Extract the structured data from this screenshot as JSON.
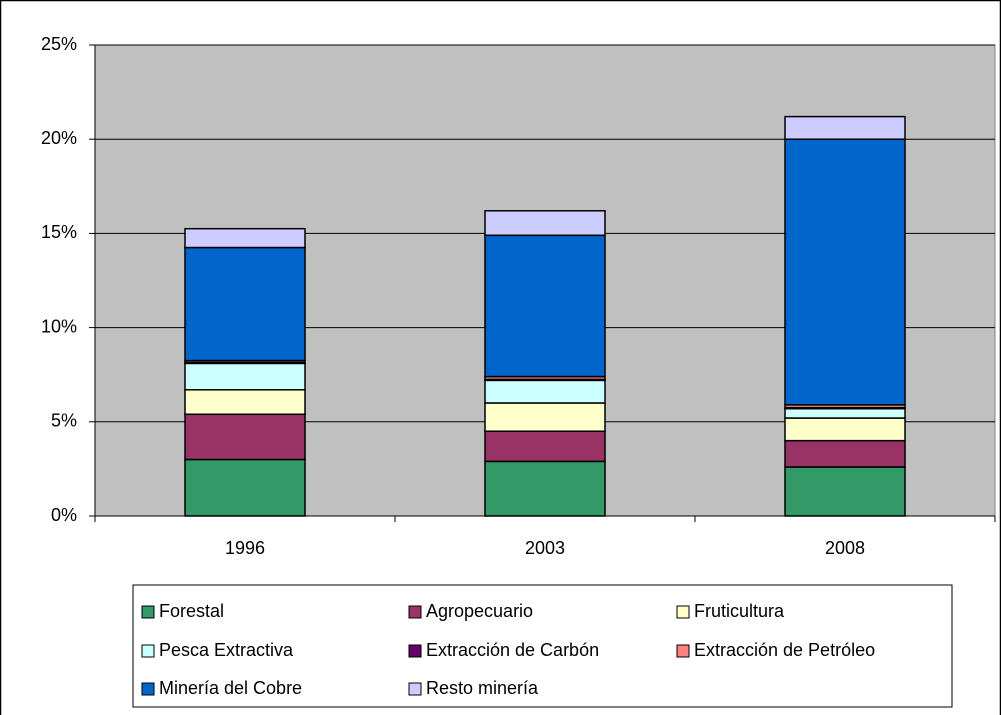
{
  "chart_data": {
    "type": "stacked_bar",
    "categories": [
      "1996",
      "2003",
      "2008"
    ],
    "series": [
      {
        "name": "Forestal",
        "color": "#339966",
        "values": [
          3.0,
          2.9,
          2.6
        ]
      },
      {
        "name": "Agropecuario",
        "color": "#993366",
        "values": [
          2.4,
          1.6,
          1.4
        ]
      },
      {
        "name": "Fruticultura",
        "color": "#FFFFCC",
        "values": [
          1.3,
          1.5,
          1.2
        ]
      },
      {
        "name": "Pesca Extractiva",
        "color": "#CCFFFF",
        "values": [
          1.4,
          1.2,
          0.5
        ]
      },
      {
        "name": "Extracción de Carbón",
        "color": "#660066",
        "values": [
          0.05,
          0.05,
          0.05
        ]
      },
      {
        "name": "Extracción de Petróleo",
        "color": "#FF8080",
        "values": [
          0.1,
          0.15,
          0.15
        ]
      },
      {
        "name": "Minería del Cobre",
        "color": "#0066CC",
        "values": [
          6.0,
          7.5,
          14.1
        ]
      },
      {
        "name": "Resto minería",
        "color": "#CCCCFF",
        "values": [
          1.0,
          1.3,
          1.2
        ]
      }
    ],
    "ylim": [
      0,
      25
    ],
    "yticks": [
      {
        "value": 0,
        "label": "0%"
      },
      {
        "value": 5,
        "label": "5%"
      },
      {
        "value": 10,
        "label": "10%"
      },
      {
        "value": 15,
        "label": "15%"
      },
      {
        "value": 20,
        "label": "20%"
      },
      {
        "value": 25,
        "label": "25%"
      }
    ],
    "grid": true,
    "legend_position": "bottom",
    "plot_background": "#C0C0C0"
  }
}
